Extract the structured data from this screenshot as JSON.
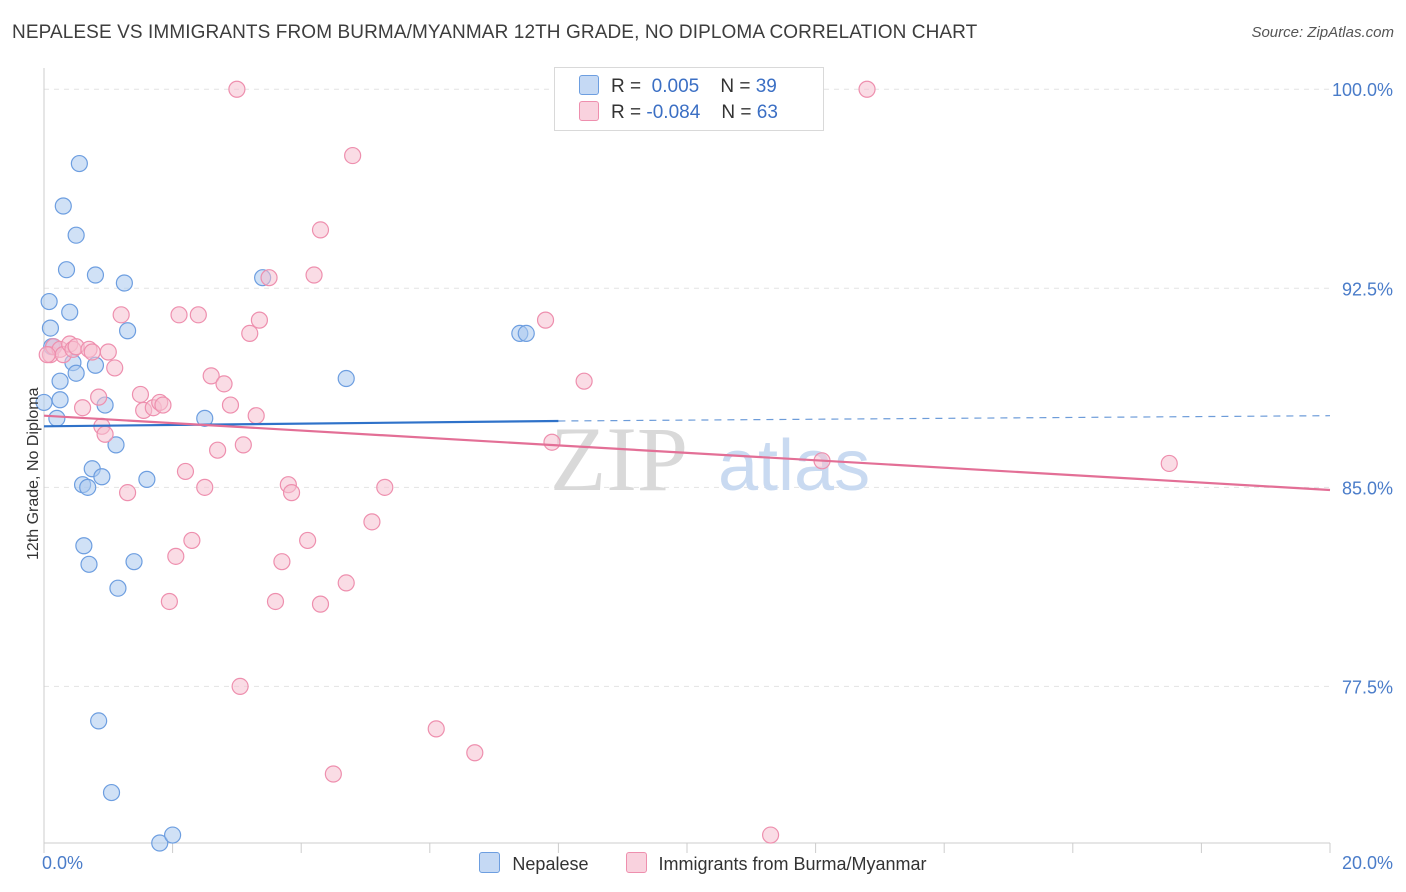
{
  "title": "NEPALESE VS IMMIGRANTS FROM BURMA/MYANMAR 12TH GRADE, NO DIPLOMA CORRELATION CHART",
  "source": "Source: ZipAtlas.com",
  "watermark": {
    "zip": "ZIP",
    "atlas": "atlas"
  },
  "legend": {
    "r_label": "R =",
    "n_label": "N =",
    "series1": {
      "r": "0.005",
      "n": "39"
    },
    "series2": {
      "r": "-0.084",
      "n": "63"
    }
  },
  "colors": {
    "blue_fill": "#aac8ef",
    "blue_stroke": "#6d9ee0",
    "blue_line": "#2f72c9",
    "pink_fill": "#f6bfd0",
    "pink_stroke": "#ee8fae",
    "pink_line": "#e36f96",
    "grid": "#e3e3e3",
    "tick_text": "#4a7cc9"
  },
  "chart_data": {
    "type": "scatter",
    "title": "NEPALESE VS IMMIGRANTS FROM BURMA/MYANMAR 12TH GRADE, NO DIPLOMA CORRELATION CHART",
    "xlabel": "",
    "ylabel": "12th Grade, No Diploma",
    "xlim": [
      0,
      20
    ],
    "ylim": [
      71.6,
      100.8
    ],
    "x_tick_labels": [
      "0.0%",
      "20.0%"
    ],
    "y_ticks": [
      77.5,
      85.0,
      92.5,
      100.0
    ],
    "y_tick_labels": [
      "77.5%",
      "85.0%",
      "92.5%",
      "100.0%"
    ],
    "grid": true,
    "series": [
      {
        "name": "Nepalese",
        "trend": {
          "x0": 0,
          "y0": 87.3,
          "x1": 8.0,
          "y1": 87.5,
          "dashed_to_x": 20.0,
          "dashed_to_y": 87.7
        },
        "points": [
          [
            0.0,
            88.2
          ],
          [
            0.08,
            92.0
          ],
          [
            0.1,
            91.0
          ],
          [
            0.12,
            90.3
          ],
          [
            0.2,
            87.6
          ],
          [
            0.25,
            88.3
          ],
          [
            0.25,
            89.0
          ],
          [
            0.3,
            95.6
          ],
          [
            0.35,
            93.2
          ],
          [
            0.4,
            91.6
          ],
          [
            0.45,
            89.7
          ],
          [
            0.5,
            89.3
          ],
          [
            0.5,
            94.5
          ],
          [
            0.55,
            97.2
          ],
          [
            0.6,
            85.1
          ],
          [
            0.62,
            82.8
          ],
          [
            0.68,
            85.0
          ],
          [
            0.7,
            82.1
          ],
          [
            0.75,
            85.7
          ],
          [
            0.8,
            89.6
          ],
          [
            0.8,
            93.0
          ],
          [
            0.85,
            76.2
          ],
          [
            0.9,
            85.4
          ],
          [
            0.95,
            88.1
          ],
          [
            1.05,
            73.5
          ],
          [
            1.12,
            86.6
          ],
          [
            1.15,
            81.2
          ],
          [
            1.25,
            92.7
          ],
          [
            1.3,
            90.9
          ],
          [
            1.4,
            82.2
          ],
          [
            1.6,
            85.3
          ],
          [
            1.8,
            71.6
          ],
          [
            2.0,
            71.9
          ],
          [
            2.5,
            87.6
          ],
          [
            3.4,
            92.9
          ],
          [
            4.7,
            89.1
          ],
          [
            7.4,
            90.8
          ],
          [
            7.5,
            90.8
          ],
          [
            0.15,
            90.3
          ]
        ]
      },
      {
        "name": "Immigrants from Burma/Myanmar",
        "trend": {
          "x0": 0,
          "y0": 87.7,
          "x1": 20.0,
          "y1": 84.9
        },
        "points": [
          [
            0.1,
            90.0
          ],
          [
            0.15,
            90.3
          ],
          [
            0.25,
            90.2
          ],
          [
            0.3,
            90.0
          ],
          [
            0.4,
            90.4
          ],
          [
            0.45,
            90.2
          ],
          [
            0.5,
            90.3
          ],
          [
            0.6,
            88.0
          ],
          [
            0.7,
            90.2
          ],
          [
            0.75,
            90.1
          ],
          [
            0.85,
            88.4
          ],
          [
            0.9,
            87.3
          ],
          [
            0.95,
            87.0
          ],
          [
            1.1,
            89.5
          ],
          [
            1.2,
            91.5
          ],
          [
            1.3,
            84.8
          ],
          [
            1.5,
            88.5
          ],
          [
            1.55,
            87.9
          ],
          [
            1.7,
            88.0
          ],
          [
            1.8,
            88.2
          ],
          [
            1.85,
            88.1
          ],
          [
            1.95,
            80.7
          ],
          [
            2.1,
            91.5
          ],
          [
            2.05,
            82.4
          ],
          [
            2.2,
            85.6
          ],
          [
            2.3,
            83.0
          ],
          [
            2.4,
            91.5
          ],
          [
            2.5,
            85.0
          ],
          [
            2.6,
            89.2
          ],
          [
            2.7,
            86.4
          ],
          [
            2.8,
            88.9
          ],
          [
            2.9,
            88.1
          ],
          [
            3.0,
            100.0
          ],
          [
            3.05,
            77.5
          ],
          [
            3.1,
            86.6
          ],
          [
            3.2,
            90.8
          ],
          [
            3.3,
            87.7
          ],
          [
            3.35,
            91.3
          ],
          [
            3.5,
            92.9
          ],
          [
            3.6,
            80.7
          ],
          [
            3.7,
            82.2
          ],
          [
            3.8,
            85.1
          ],
          [
            3.85,
            84.8
          ],
          [
            4.1,
            83.0
          ],
          [
            4.2,
            93.0
          ],
          [
            4.3,
            80.6
          ],
          [
            4.3,
            94.7
          ],
          [
            4.5,
            74.2
          ],
          [
            4.7,
            81.4
          ],
          [
            4.8,
            97.5
          ],
          [
            5.1,
            83.7
          ],
          [
            5.3,
            85.0
          ],
          [
            6.1,
            75.9
          ],
          [
            6.7,
            75.0
          ],
          [
            7.8,
            91.3
          ],
          [
            7.9,
            86.7
          ],
          [
            8.4,
            89.0
          ],
          [
            11.3,
            71.9
          ],
          [
            12.1,
            86.0
          ],
          [
            12.8,
            100.0
          ],
          [
            17.5,
            85.9
          ],
          [
            0.05,
            90.0
          ],
          [
            1.0,
            90.1
          ]
        ]
      }
    ]
  }
}
